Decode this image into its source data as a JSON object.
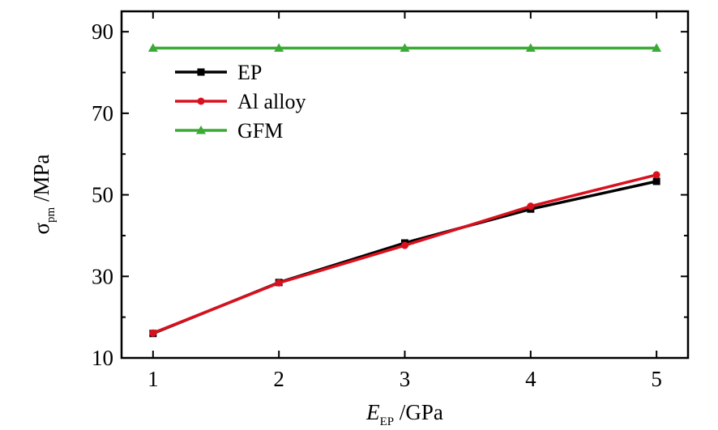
{
  "chart_data": {
    "type": "line",
    "x": [
      1,
      2,
      3,
      4,
      5
    ],
    "xlim": [
      0.75,
      5.25
    ],
    "ylim": [
      10,
      95
    ],
    "xticks": [
      1,
      2,
      3,
      4,
      5
    ],
    "yticks": [
      10,
      30,
      50,
      70,
      90
    ],
    "xlabel": {
      "main": "E",
      "sub": "EP",
      "unit": " /GPa"
    },
    "ylabel": {
      "main": "σ",
      "sub": "pm",
      "unit": " /MPa"
    },
    "legend_position": "top-left",
    "grid": false,
    "series": [
      {
        "name": "EP",
        "color": "#000000",
        "marker": "square",
        "values": [
          16,
          28.5,
          38.2,
          46.5,
          53.3
        ]
      },
      {
        "name": "Al alloy",
        "color": "#d9101e",
        "marker": "circle",
        "values": [
          16.1,
          28.4,
          37.6,
          47.2,
          54.9
        ]
      },
      {
        "name": "GFM",
        "color": "#3aaa35",
        "marker": "triangle",
        "values": [
          86,
          86,
          86,
          86,
          86
        ]
      }
    ]
  }
}
